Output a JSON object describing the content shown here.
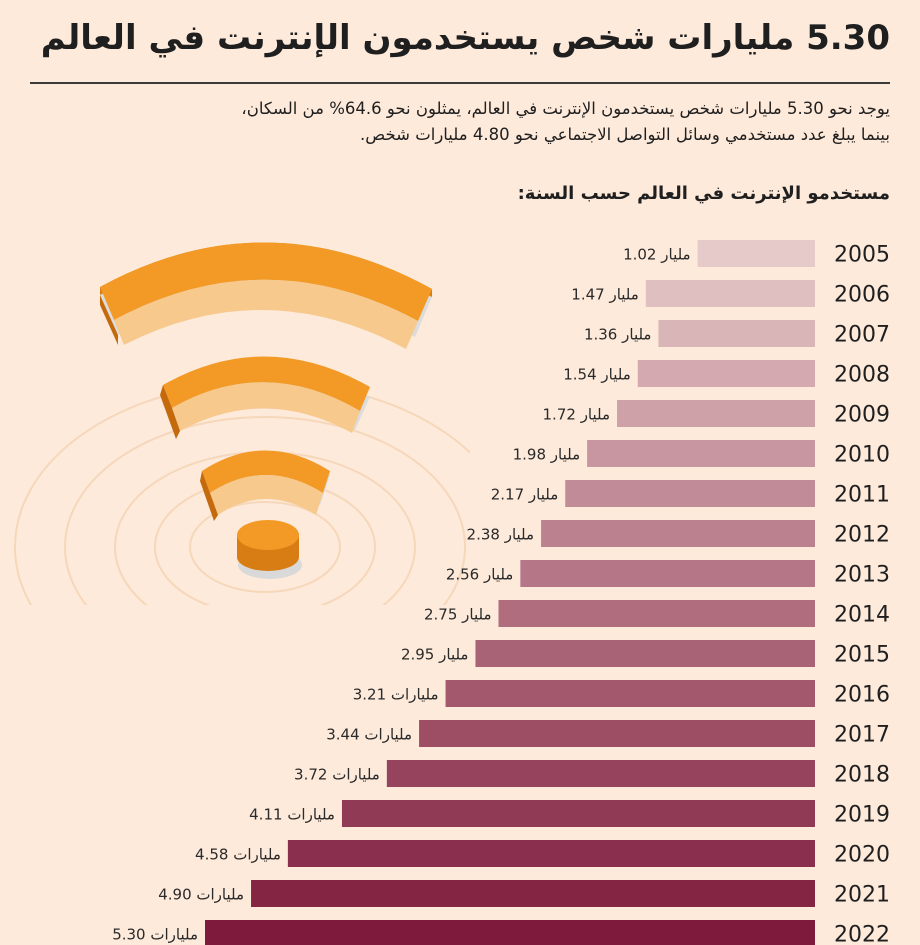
{
  "header": {
    "title": "5.30 مليارات شخص يستخدمون الإنترنت في العالم",
    "intro_line1": "يوجد نحو 5.30 مليارات شخص يستخدمون الإنترنت في العالم، يمثلون نحو 64.6% من السكان،",
    "intro_line2": "بينما يبلغ عدد مستخدمي وسائل التواصل الاجتماعي نحو 4.80 مليارات شخص."
  },
  "chart_data": {
    "type": "bar",
    "orientation": "horizontal",
    "subtitle": "مستخدمو الإنترنت في العالم حسب السنة:",
    "categories": [
      "2005",
      "2006",
      "2007",
      "2008",
      "2009",
      "2010",
      "2011",
      "2012",
      "2013",
      "2014",
      "2015",
      "2016",
      "2017",
      "2018",
      "2019",
      "2020",
      "2021",
      "2022"
    ],
    "values": [
      1.02,
      1.47,
      1.36,
      1.54,
      1.72,
      1.98,
      2.17,
      2.38,
      2.56,
      2.75,
      2.95,
      3.21,
      3.44,
      3.72,
      4.11,
      4.58,
      4.9,
      5.3
    ],
    "value_labels": [
      "1.02 مليار",
      "1.47 مليار",
      "1.36 مليار",
      "1.54 مليار",
      "1.72 مليار",
      "1.98 مليار",
      "2.17 مليار",
      "2.38 مليار",
      "2.56 مليار",
      "2.75 مليار",
      "2.95 مليار",
      "3.21 مليارات",
      "3.44 مليارات",
      "3.72 مليارات",
      "4.11 مليارات",
      "4.58 مليارات",
      "4.90 مليارات",
      "5.30 مليارات"
    ],
    "colors": {
      "bar_start": "#e6c9c9",
      "bar_end": "#7e1b3c",
      "background": "#fdeadb",
      "wifi_orange": "#f39a26",
      "wifi_light": "#f7c98c"
    }
  }
}
